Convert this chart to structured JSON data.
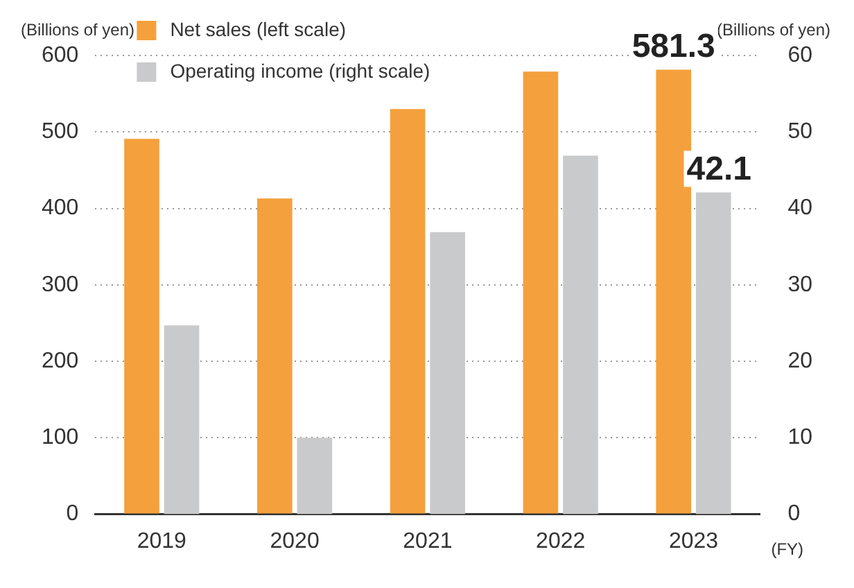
{
  "chart_data": {
    "type": "bar",
    "categories": [
      "2019",
      "2020",
      "2021",
      "2022",
      "2023"
    ],
    "series": [
      {
        "name": "Net sales (left scale)",
        "color": "#f4a03c",
        "values": [
          491,
          413,
          530,
          579,
          581.3
        ],
        "value_labels": [
          null,
          null,
          null,
          null,
          "581.3"
        ]
      },
      {
        "name": "Operating income (right scale)",
        "color": "#c9cacb",
        "axis": "y2",
        "values": [
          24.7,
          10.0,
          36.9,
          46.9,
          42.1
        ],
        "value_labels": [
          null,
          null,
          null,
          null,
          "42.1"
        ]
      }
    ],
    "ylabel": "(Billions of yen)",
    "y2label": "(Billions of yen)",
    "xlabel": "(FY)",
    "ylim": [
      0,
      600
    ],
    "yticks": [
      0,
      100,
      200,
      300,
      400,
      500,
      600
    ],
    "y2lim": [
      0,
      60
    ],
    "y2ticks": [
      0,
      10,
      20,
      30,
      40,
      50,
      60
    ],
    "grid": "y",
    "legend": "top left"
  }
}
